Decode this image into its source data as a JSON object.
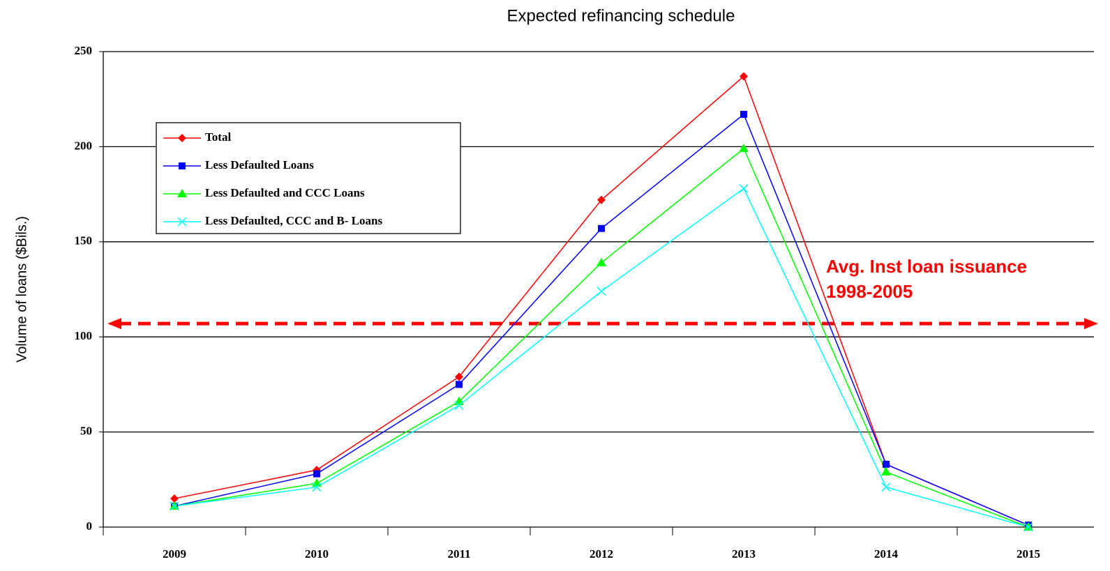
{
  "chart_data": {
    "type": "line",
    "title": "Expected refinancing schedule",
    "y_label": "Volume of loans ($Bils.)",
    "categories": [
      "2009",
      "2010",
      "2011",
      "2012",
      "2013",
      "2014",
      "2015"
    ],
    "series": [
      {
        "name": "Total",
        "color": "#ff0000",
        "marker": "diamond",
        "values": [
          15,
          30,
          79,
          172,
          237,
          33,
          1
        ]
      },
      {
        "name": "Less Defaulted Loans",
        "color": "#0000ff",
        "marker": "square",
        "values": [
          11,
          28,
          75,
          157,
          217,
          33,
          1
        ]
      },
      {
        "name": "Less Defaulted and CCC Loans",
        "color": "#00ff00",
        "marker": "triangle",
        "values": [
          11,
          23,
          66,
          139,
          199,
          29,
          0
        ]
      },
      {
        "name": "Less Defaulted, CCC and B- Loans",
        "color": "#00ffff",
        "marker": "x",
        "values": [
          11,
          21,
          64,
          124,
          178,
          21,
          0
        ]
      }
    ],
    "ylim": [
      0,
      250
    ],
    "yticks": [
      0,
      50,
      100,
      150,
      200,
      250
    ],
    "grid": true,
    "reference_line": {
      "value": 107,
      "color": "#ff0000",
      "label": [
        "Avg. Inst loan issuance",
        "1998-2005"
      ]
    }
  }
}
